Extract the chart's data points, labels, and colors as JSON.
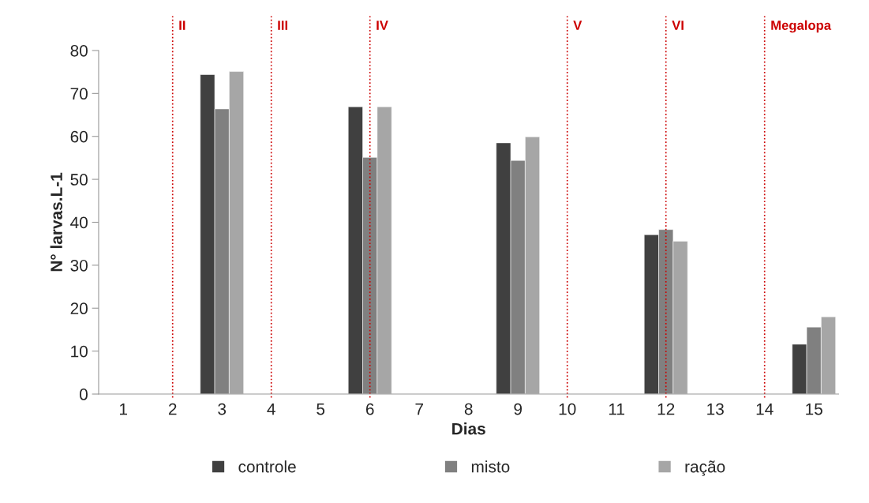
{
  "chart_data": {
    "type": "bar",
    "xlabel": "Dias",
    "ylabel": "N° larvas.L-1",
    "categories": [
      "1",
      "2",
      "3",
      "4",
      "5",
      "6",
      "7",
      "8",
      "9",
      "10",
      "11",
      "12",
      "13",
      "14",
      "15"
    ],
    "series": [
      {
        "name": "controle",
        "color": "#404040",
        "values": [
          null,
          null,
          74.4,
          null,
          null,
          66.9,
          null,
          null,
          58.5,
          null,
          null,
          37.1,
          null,
          null,
          11.6
        ]
      },
      {
        "name": "misto",
        "color": "#808080",
        "values": [
          null,
          null,
          66.4,
          null,
          null,
          55.1,
          null,
          null,
          54.4,
          null,
          null,
          38.3,
          null,
          null,
          15.6
        ]
      },
      {
        "name": "ração",
        "color": "#a6a6a6",
        "values": [
          null,
          null,
          75.1,
          null,
          null,
          66.9,
          null,
          null,
          59.9,
          null,
          null,
          35.6,
          null,
          null,
          18.0
        ]
      }
    ],
    "ylim": [
      0,
      80
    ],
    "yticks": [
      0,
      10,
      20,
      30,
      40,
      50,
      60,
      70,
      80
    ],
    "ref_lines": [
      {
        "axis": "x",
        "value": "2",
        "label": "II",
        "color": "#cc0000",
        "line_style": "dotted"
      },
      {
        "axis": "x",
        "value": "4",
        "label": "III",
        "color": "#cc0000",
        "line_style": "dotted"
      },
      {
        "axis": "x",
        "value": "6",
        "label": "IV",
        "color": "#cc0000",
        "line_style": "dotted"
      },
      {
        "axis": "x",
        "value": "10",
        "label": "V",
        "color": "#cc0000",
        "line_style": "dotted"
      },
      {
        "axis": "x",
        "value": "12",
        "label": "VI",
        "color": "#cc0000",
        "line_style": "dotted"
      },
      {
        "axis": "x",
        "value": "14",
        "label": "Megalopa",
        "color": "#cc0000",
        "line_style": "dotted"
      }
    ],
    "grid": false,
    "legend": "bottom"
  }
}
